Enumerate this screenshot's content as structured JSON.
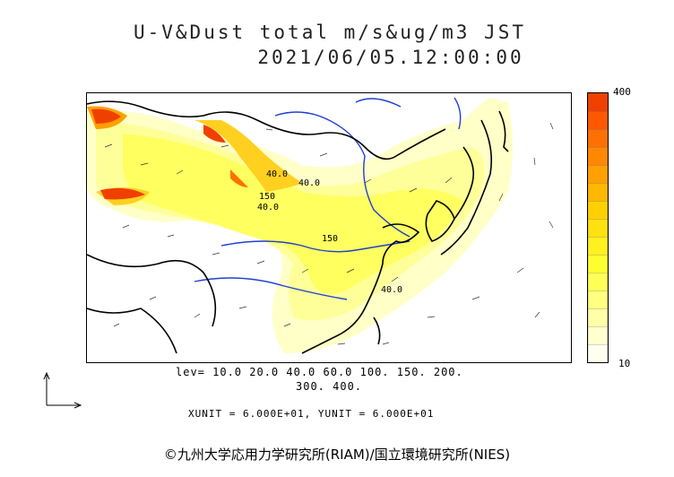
{
  "title": "U-V&Dust total m/s&ug/m3 JST",
  "datetime": "2021/06/05.12:00:00",
  "colorbar": {
    "max_label": "400",
    "min_label": "10",
    "colors": [
      "#fffff0",
      "#ffffd0",
      "#ffffa8",
      "#ffff80",
      "#ffff58",
      "#ffff30",
      "#fff020",
      "#ffe010",
      "#ffd000",
      "#ffb800",
      "#ffa000",
      "#ff8800",
      "#ff7000",
      "#ff5800",
      "#f04000"
    ]
  },
  "levels_line1": "lev= 10.0 20.0 40.0 60.0 100. 150. 200.",
  "levels_line2": "300. 400.",
  "units_text": "XUNIT = 6.000E+01, YUNIT = 6.000E+01",
  "contour_labels": [
    "40.0",
    "40.0",
    "40.0",
    "150",
    "150",
    "40.0"
  ],
  "copyright": "©九州大学応用力学研究所(RIAM)/国立環境研究所(NIES)",
  "colors": {
    "land_border": "#000000",
    "rivers": "#1f3fd0",
    "dust_high": "#f04000"
  }
}
